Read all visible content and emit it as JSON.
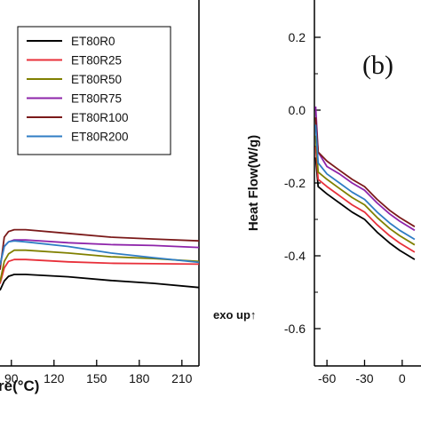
{
  "chart_data": [
    {
      "type": "line",
      "panel": "a",
      "xlabel": "re(°C)",
      "ylabel": "",
      "xlim": [
        82,
        222
      ],
      "ylim": [
        0,
        100
      ],
      "xticks": [
        90,
        120,
        150,
        180,
        210
      ],
      "xtick_labels": [
        "90",
        "120",
        "150",
        "180",
        "210"
      ],
      "legend_position": "top-right",
      "series": [
        {
          "name": "ET80R0",
          "color": "#000000",
          "x": [
            82,
            85,
            88,
            92,
            100,
            130,
            160,
            190,
            222
          ],
          "y": [
            3,
            13,
            18,
            20,
            20,
            17.5,
            13.5,
            10.5,
            6
          ]
        },
        {
          "name": "ET80R25",
          "color": "#e8303a",
          "x": [
            82,
            85,
            88,
            92,
            100,
            130,
            160,
            190,
            222
          ],
          "y": [
            10,
            27,
            34,
            36,
            36,
            33.5,
            32,
            31.5,
            31
          ]
        },
        {
          "name": "ET80R50",
          "color": "#808000",
          "x": [
            82,
            85,
            88,
            92,
            100,
            130,
            160,
            190,
            222
          ],
          "y": [
            12,
            34,
            42,
            46,
            46,
            43,
            39,
            37,
            34
          ]
        },
        {
          "name": "ET80R75",
          "color": "#8e24aa",
          "x": [
            82,
            85,
            88,
            92,
            100,
            130,
            160,
            190,
            222
          ],
          "y": [
            30,
            50,
            55,
            57,
            57,
            54,
            52,
            51,
            49
          ]
        },
        {
          "name": "ET80R100",
          "color": "#7b1a1a",
          "x": [
            82,
            85,
            88,
            92,
            100,
            130,
            160,
            190,
            222
          ],
          "y": [
            25,
            60,
            66,
            68,
            68,
            64,
            60,
            58,
            56
          ]
        },
        {
          "name": "ET80R200",
          "color": "#2f7dc4",
          "x": [
            82,
            85,
            88,
            92,
            100,
            130,
            160,
            190,
            222
          ],
          "y": [
            30,
            50,
            55,
            56,
            55,
            50,
            43,
            38,
            33
          ]
        }
      ]
    },
    {
      "type": "line",
      "panel": "b",
      "xlabel": "",
      "ylabel": "Heat Flow(W/g)",
      "xlim": [
        -70,
        15
      ],
      "ylim": [
        -0.67,
        0.27
      ],
      "xticks": [
        -60,
        -30,
        0
      ],
      "xtick_labels": [
        "-60",
        "-30",
        "0"
      ],
      "yticks": [
        0.2,
        0.0,
        -0.2,
        -0.4,
        -0.6
      ],
      "ytick_labels": [
        "0.2",
        "0.0",
        "-0.2",
        "-0.4",
        "-0.6"
      ],
      "panel_label": "(b)",
      "annotation": "exo up↑",
      "series": [
        {
          "name": "ET80R0",
          "color": "#000000",
          "x": [
            -69,
            -67,
            -60,
            -50,
            -40,
            -30,
            -20,
            -10,
            -2,
            10
          ],
          "y": [
            -0.13,
            -0.21,
            -0.23,
            -0.255,
            -0.28,
            -0.3,
            -0.335,
            -0.365,
            -0.385,
            -0.41
          ]
        },
        {
          "name": "ET80R25",
          "color": "#e8303a",
          "x": [
            -69,
            -67,
            -60,
            -50,
            -40,
            -30,
            -20,
            -10,
            -2,
            10
          ],
          "y": [
            -0.1,
            -0.19,
            -0.21,
            -0.235,
            -0.26,
            -0.28,
            -0.315,
            -0.345,
            -0.365,
            -0.39
          ]
        },
        {
          "name": "ET80R50",
          "color": "#808000",
          "x": [
            -69,
            -67,
            -60,
            -50,
            -40,
            -30,
            -20,
            -10,
            -2,
            10
          ],
          "y": [
            -0.07,
            -0.17,
            -0.19,
            -0.215,
            -0.24,
            -0.26,
            -0.295,
            -0.325,
            -0.345,
            -0.37
          ]
        },
        {
          "name": "ET80R75",
          "color": "#8e24aa",
          "x": [
            -69,
            -67,
            -60,
            -50,
            -40,
            -30,
            -20,
            -10,
            -2,
            10
          ],
          "y": [
            0.01,
            -0.115,
            -0.155,
            -0.175,
            -0.2,
            -0.22,
            -0.255,
            -0.285,
            -0.305,
            -0.33
          ]
        },
        {
          "name": "ET80R100",
          "color": "#7b1a1a",
          "x": [
            -69,
            -67,
            -60,
            -50,
            -40,
            -30,
            -20,
            -10,
            -2,
            10
          ],
          "y": [
            -0.02,
            -0.115,
            -0.14,
            -0.165,
            -0.19,
            -0.21,
            -0.245,
            -0.275,
            -0.295,
            -0.32
          ]
        },
        {
          "name": "ET80R200",
          "color": "#2f7dc4",
          "x": [
            -69,
            -67,
            -60,
            -50,
            -40,
            -30,
            -20,
            -10,
            -2,
            10
          ],
          "y": [
            -0.04,
            -0.145,
            -0.175,
            -0.2,
            -0.225,
            -0.245,
            -0.28,
            -0.31,
            -0.33,
            -0.355
          ]
        }
      ]
    }
  ]
}
